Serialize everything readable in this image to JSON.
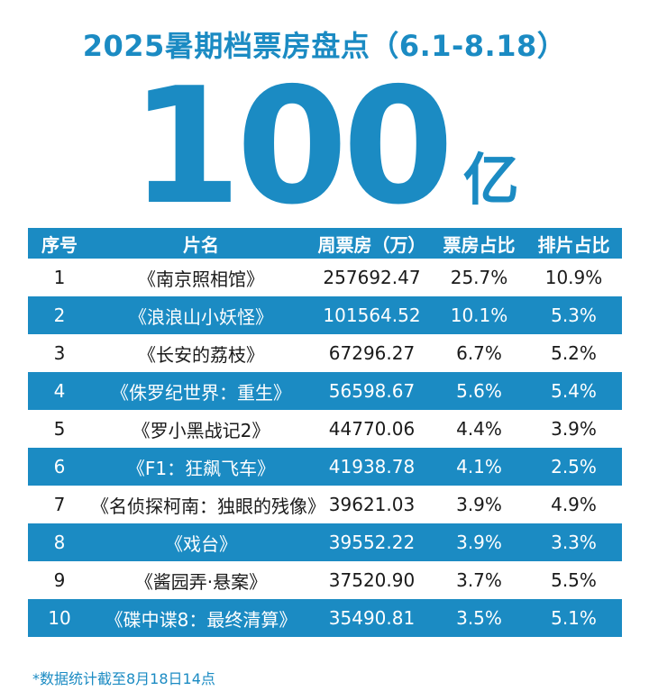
{
  "header": {
    "title": "2025暑期档票房盘点（6.1-8.18）",
    "total_number": "100",
    "total_unit": "亿"
  },
  "colors": {
    "accent": "#1b8bc3",
    "row_highlight_text": "#ffffff"
  },
  "chart_data": {
    "type": "table",
    "columns": [
      "序号",
      "片名",
      "周票房（万）",
      "票房占比",
      "排片占比"
    ],
    "rows": [
      [
        "1",
        "《南京照相馆》",
        "257692.47",
        "25.7%",
        "10.9%"
      ],
      [
        "2",
        "《浪浪山小妖怪》",
        "101564.52",
        "10.1%",
        "5.3%"
      ],
      [
        "3",
        "《长安的荔枝》",
        "67296.27",
        "6.7%",
        "5.2%"
      ],
      [
        "4",
        "《侏罗纪世界：重生》",
        "56598.67",
        "5.6%",
        "5.4%"
      ],
      [
        "5",
        "《罗小黑战记2》",
        "44770.06",
        "4.4%",
        "3.9%"
      ],
      [
        "6",
        "《F1：狂飙飞车》",
        "41938.78",
        "4.1%",
        "2.5%"
      ],
      [
        "7",
        "《名侦探柯南：独眼的残像》",
        "39621.03",
        "3.9%",
        "4.9%"
      ],
      [
        "8",
        "《戏台》",
        "39552.22",
        "3.9%",
        "3.3%"
      ],
      [
        "9",
        "《酱园弄·悬案》",
        "37520.90",
        "3.7%",
        "5.5%"
      ],
      [
        "10",
        "《碟中谍8：最终清算》",
        "35490.81",
        "3.5%",
        "5.1%"
      ]
    ]
  },
  "footnote": "*数据统计截至8月18日14点"
}
